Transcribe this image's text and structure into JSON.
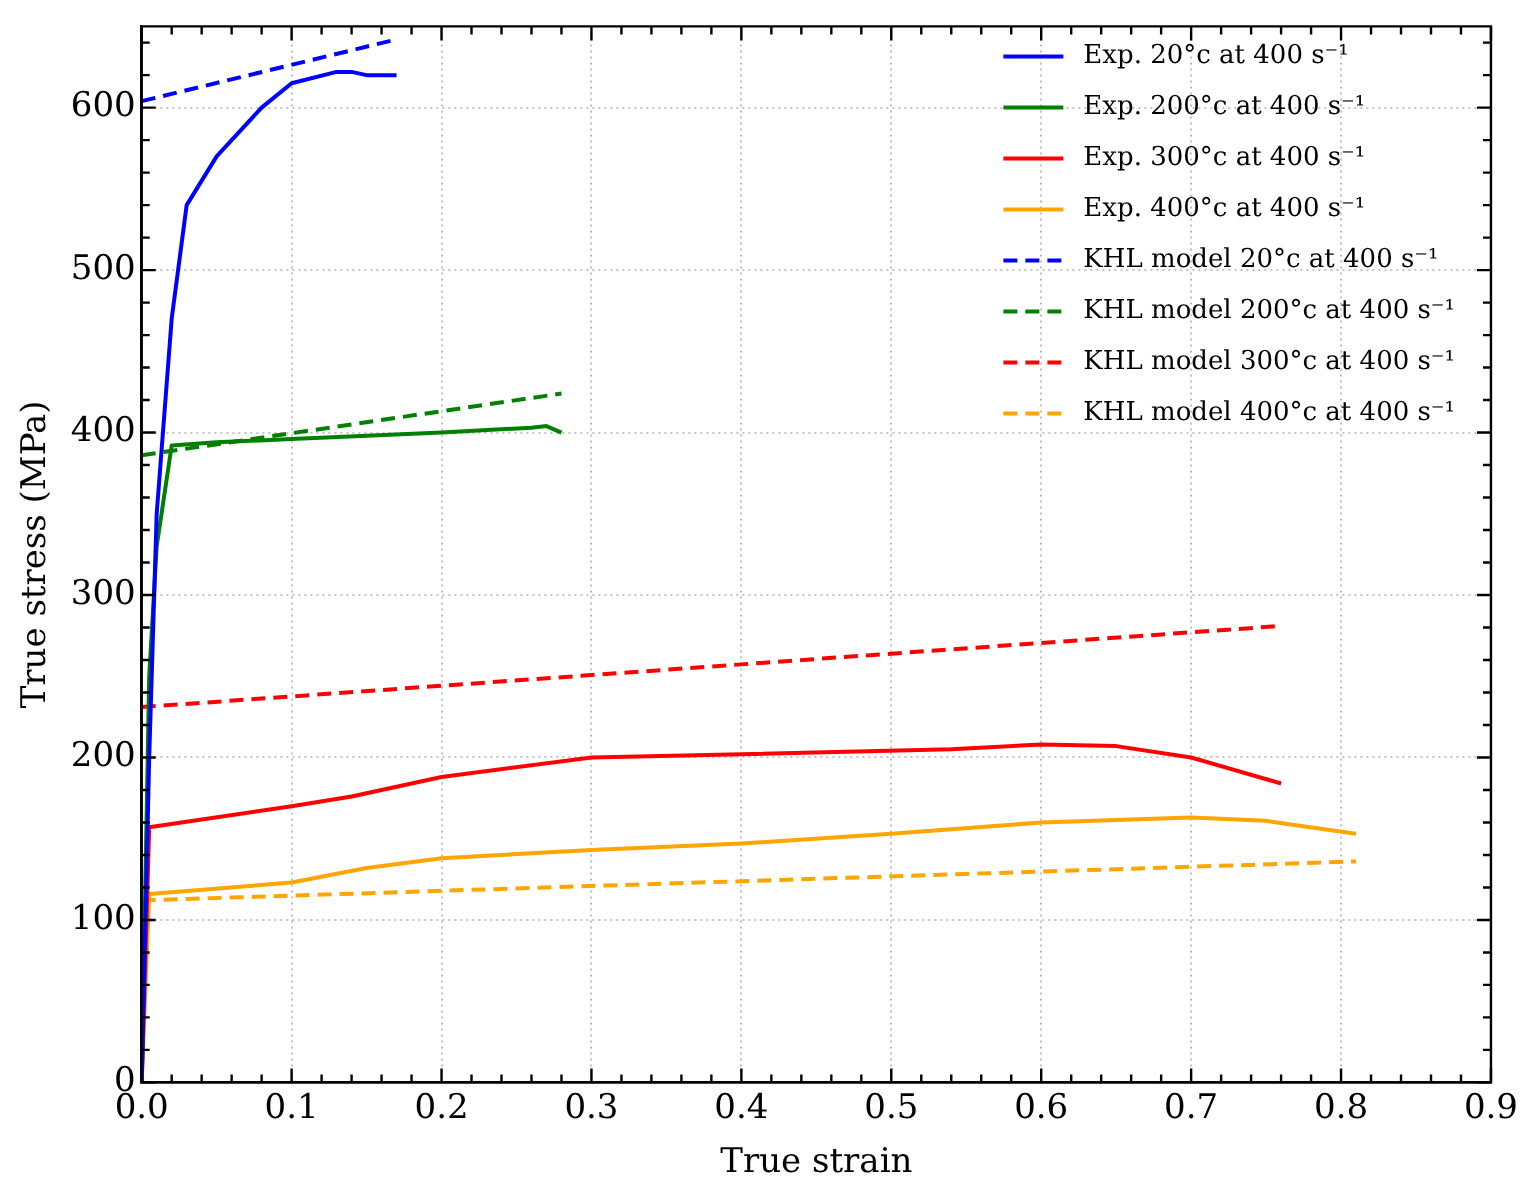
{
  "chart_data": {
    "type": "line",
    "xlabel": "True strain",
    "ylabel": "True stress (MPa)",
    "xlim": [
      0,
      0.9
    ],
    "xticks": [
      {
        "value": 0,
        "label": "0.0"
      },
      0.1,
      0.2,
      0.3,
      0.4,
      0.5,
      0.6,
      0.7,
      0.8,
      0.9
    ],
    "ylim": [
      0,
      650
    ],
    "yticks": [
      0,
      100,
      200,
      300,
      400,
      500,
      600
    ],
    "grid": true,
    "legend": "top right",
    "marker": "none",
    "series": [
      {
        "name": "Exp. 20°c at 400 s⁻¹",
        "color": "#0000ff",
        "line_style": "solid",
        "x": [
          0,
          0.005,
          0.01,
          0.02,
          0.03,
          0.05,
          0.08,
          0.1,
          0.13,
          0.14,
          0.15,
          0.17
        ],
        "values": [
          0,
          200,
          350,
          470,
          540,
          570,
          600,
          615,
          622,
          622,
          620,
          620
        ]
      },
      {
        "name": "Exp. 200°c at 400 s⁻¹",
        "color": "#008000",
        "line_style": "solid",
        "x": [
          0,
          0.005,
          0.01,
          0.02,
          0.05,
          0.1,
          0.2,
          0.26,
          0.27,
          0.28
        ],
        "values": [
          0,
          250,
          330,
          392,
          394,
          396,
          400,
          403,
          404,
          400
        ]
      },
      {
        "name": "Exp. 300°c at 400 s⁻¹",
        "color": "#ff0000",
        "line_style": "solid",
        "x": [
          0,
          0.005,
          0.1,
          0.14,
          0.2,
          0.3,
          0.4,
          0.54,
          0.6,
          0.65,
          0.7,
          0.76
        ],
        "values": [
          0,
          157,
          170,
          176,
          188,
          200,
          202,
          205,
          208,
          207,
          200,
          184
        ]
      },
      {
        "name": "Exp. 400°c at 400 s⁻¹",
        "color": "#ffa500",
        "line_style": "solid",
        "x": [
          0,
          0.005,
          0.1,
          0.15,
          0.2,
          0.3,
          0.4,
          0.5,
          0.6,
          0.7,
          0.75,
          0.81
        ],
        "values": [
          0,
          116,
          123,
          132,
          138,
          143,
          147,
          153,
          160,
          163,
          161,
          153
        ]
      },
      {
        "name": "KHL model 20°c at 400 s⁻¹",
        "color": "#0000ff",
        "line_style": "dashed",
        "x": [
          0,
          0.17
        ],
        "values": [
          604,
          642
        ]
      },
      {
        "name": "KHL model 200°c at 400 s⁻¹",
        "color": "#008000",
        "line_style": "dashed",
        "x": [
          0,
          0.28
        ],
        "values": [
          386,
          424
        ]
      },
      {
        "name": "KHL model 300°c at 400 s⁻¹",
        "color": "#ff0000",
        "line_style": "dashed",
        "x": [
          0,
          0.76
        ],
        "values": [
          231,
          281
        ]
      },
      {
        "name": "KHL model 400°c at 400 s⁻¹",
        "color": "#ffa500",
        "line_style": "dashed",
        "x": [
          0,
          0.81
        ],
        "values": [
          112,
          136
        ]
      }
    ]
  }
}
